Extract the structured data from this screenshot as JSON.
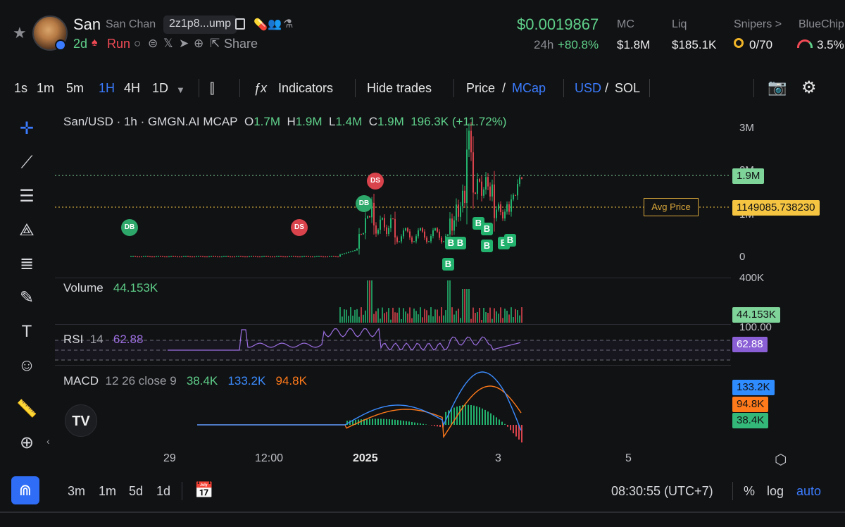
{
  "header": {
    "token_symbol": "San",
    "token_name": "San Chan",
    "address": "2z1p8...ump",
    "age": "2d",
    "run_label": "Run",
    "share_label": "Share",
    "price": "$0.0019867",
    "change_label": "24h",
    "change_value": "+80.8%",
    "stats": [
      {
        "label": "MC",
        "value": "$1.8M"
      },
      {
        "label": "Liq",
        "value": "$185.1K"
      },
      {
        "label": "Snipers >",
        "value": "0/70"
      },
      {
        "label": "BlueChip",
        "value": "3.5%"
      }
    ]
  },
  "toolbar": {
    "intervals": [
      "1s",
      "1m",
      "5m",
      "1H",
      "4H",
      "1D"
    ],
    "active_interval": "1H",
    "indicators_label": "Indicators",
    "hide_trades_label": "Hide trades",
    "price_label": "Price",
    "mcap_label": "MCap",
    "usd_label": "USD",
    "sol_label": "SOL",
    "slash": "/"
  },
  "chart": {
    "symbol_line": "San/USD · 1h · GMGN.AI MCAP",
    "ohlc": {
      "o": "1.7M",
      "h": "1.9M",
      "l": "1.4M",
      "c": "1.9M",
      "change": "196.3K (+11.72%)"
    },
    "ohlc_keys": {
      "o": "O",
      "h": "H",
      "l": "L",
      "c": "C"
    },
    "price_axis": [
      "3M",
      "2M",
      "1M",
      "0"
    ],
    "last_price_tag": "1.9M",
    "avg_price_label": "Avg Price",
    "avg_price_tag": "1149085.738230",
    "volume_label": "Volume",
    "volume_value": "44.153K",
    "volume_axis": "400K",
    "volume_tag": "44.153K",
    "rsi_label": "RSI",
    "rsi_period": "14",
    "rsi_value": "62.88",
    "rsi_axis": "100.00",
    "rsi_tag": "62.88",
    "macd_label": "MACD",
    "macd_params": "12 26 close 9",
    "macd_hist": "38.4K",
    "macd_line": "133.2K",
    "macd_signal": "94.8K",
    "time_axis": [
      "29",
      "12:00",
      "2025",
      "3",
      "5"
    ],
    "markers": {
      "db": "DB",
      "ds": "DS",
      "b": "B"
    }
  },
  "bottombar": {
    "ranges": [
      "3m",
      "1m",
      "5d",
      "1d"
    ],
    "clock": "08:30:55 (UTC+7)",
    "percent": "%",
    "log": "log",
    "auto": "auto"
  },
  "colors": {
    "up": "#23b26d",
    "down": "#d9434c",
    "accent": "#3b7cff",
    "rsi": "#9b6fe0",
    "macd": "#3b8cff",
    "signal": "#ff7a1a"
  }
}
